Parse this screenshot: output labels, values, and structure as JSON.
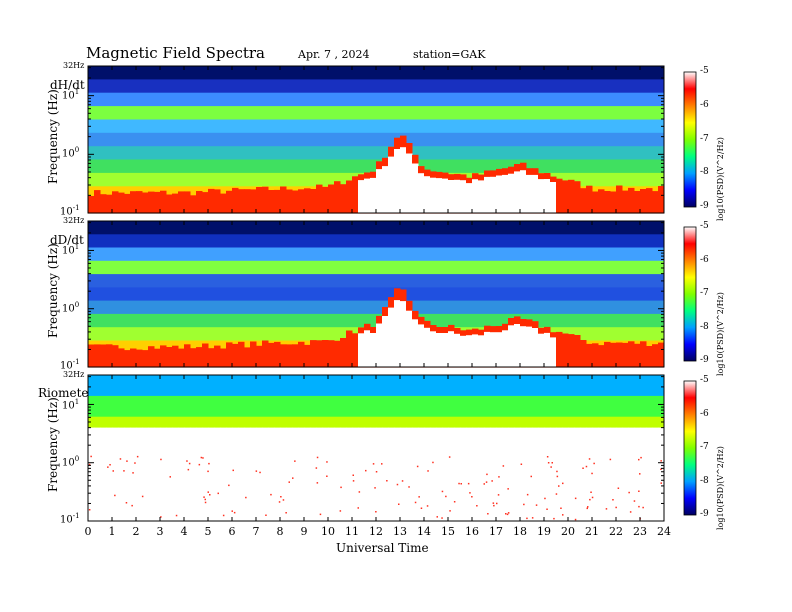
{
  "header": {
    "title": "Magnetic  Field  Spectra",
    "date": "Apr. 7  , 2024",
    "station": "station=GAK"
  },
  "chart_data": {
    "type": "heatmap",
    "title": "Magnetic  Field  Spectra",
    "xlabel": "Universal Time",
    "xlim": [
      0,
      24
    ],
    "x_ticks": [
      "0",
      "1",
      "2",
      "3",
      "4",
      "5",
      "6",
      "7",
      "8",
      "9",
      "10",
      "11",
      "12",
      "13",
      "14",
      "15",
      "16",
      "17",
      "18",
      "19",
      "20",
      "21",
      "22",
      "23",
      "24"
    ],
    "ylabel": "Frequency  (Hz)",
    "y_scale": "log",
    "ylim": [
      0.1,
      32
    ],
    "y_top_label": "32Hz",
    "colorbar": {
      "label": "log10(PSD)(V^2/Hz)",
      "ticks": [
        "-5",
        "-6",
        "-7",
        "-8",
        "-9"
      ],
      "range": [
        -9,
        -5
      ],
      "colors": [
        "#000060",
        "#0000ff",
        "#00a0ff",
        "#00ff80",
        "#80ff00",
        "#ffff00",
        "#ff8000",
        "#ff0000",
        "#ffffff"
      ]
    },
    "panels": [
      {
        "label": "dH/dt",
        "bands_top_down": [
          "#00106a",
          "#1830c0",
          "#3c8cff",
          "#7cff40",
          "#40b8ff",
          "#3a90f0",
          "#30c0c0",
          "#40e060",
          "#a0ff30",
          "#ffd000",
          "#ff3000"
        ],
        "low_freq_power_profile_ut": [
          [
            0,
            0.25
          ],
          [
            4,
            0.25
          ],
          [
            8,
            0.3
          ],
          [
            10,
            0.32
          ],
          [
            12,
            0.55
          ],
          [
            13,
            1.0
          ],
          [
            14,
            0.55
          ],
          [
            16,
            0.45
          ],
          [
            18,
            0.6
          ],
          [
            19,
            0.5
          ],
          [
            21,
            0.3
          ],
          [
            24,
            0.3
          ]
        ]
      },
      {
        "label": "dD/dt",
        "bands_top_down": [
          "#00106a",
          "#1030c0",
          "#40a0ff",
          "#80ff40",
          "#2a60e0",
          "#2050e0",
          "#3090e0",
          "#40e060",
          "#a0ff30",
          "#ffd000",
          "#ff3000"
        ],
        "low_freq_power_profile_ut": [
          [
            0,
            0.25
          ],
          [
            4,
            0.25
          ],
          [
            8,
            0.3
          ],
          [
            10,
            0.32
          ],
          [
            12,
            0.55
          ],
          [
            13,
            1.0
          ],
          [
            14,
            0.55
          ],
          [
            16,
            0.45
          ],
          [
            18,
            0.6
          ],
          [
            19,
            0.5
          ],
          [
            21,
            0.3
          ],
          [
            24,
            0.3
          ]
        ]
      },
      {
        "label": "Riometer",
        "bands_top_down": [
          "#00b0ff",
          "#40ff40",
          "#c0ff00",
          "#ffd000",
          "#ff4000",
          "#ff9090",
          "#ffffff"
        ],
        "low_freq_power_profile_ut": [
          [
            0,
            0.1
          ],
          [
            24,
            0.1
          ]
        ]
      }
    ]
  }
}
